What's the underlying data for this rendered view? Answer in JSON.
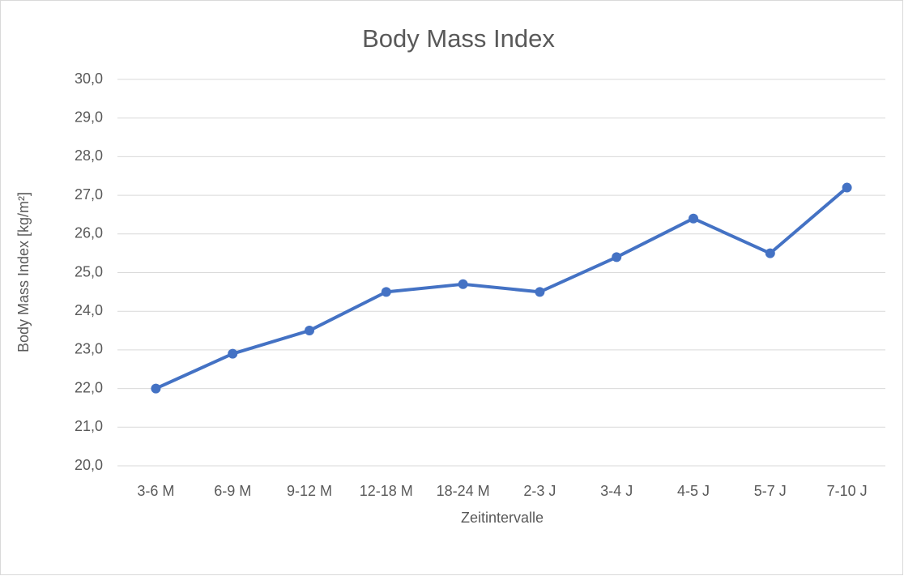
{
  "chart_data": {
    "type": "line",
    "title": "Body Mass Index",
    "x_label": "Zeitintervalle",
    "y_label": "Body Mass Index [kg/m²]",
    "categories": [
      "3-6 M",
      "6-9 M",
      "9-12 M",
      "12-18 M",
      "18-24 M",
      "2-3 J",
      "3-4 J",
      "4-5 J",
      "5-7 J",
      "7-10 J"
    ],
    "series": [
      {
        "name": "Body Mass Index",
        "color": "#4472c4",
        "values": [
          22.0,
          22.9,
          23.5,
          24.5,
          24.7,
          24.5,
          25.4,
          26.4,
          25.5,
          27.2
        ]
      }
    ],
    "ylim": [
      20,
      30
    ],
    "yticks": [
      {
        "value": 20,
        "label": "20,0"
      },
      {
        "value": 21,
        "label": "21,0"
      },
      {
        "value": 22,
        "label": "22,0"
      },
      {
        "value": 23,
        "label": "23,0"
      },
      {
        "value": 24,
        "label": "24,0"
      },
      {
        "value": 25,
        "label": "25,0"
      },
      {
        "value": 26,
        "label": "26,0"
      },
      {
        "value": 27,
        "label": "27,0"
      },
      {
        "value": 28,
        "label": "28,0"
      },
      {
        "value": 29,
        "label": "29,0"
      },
      {
        "value": 30,
        "label": "30,0"
      }
    ],
    "grid": true
  }
}
